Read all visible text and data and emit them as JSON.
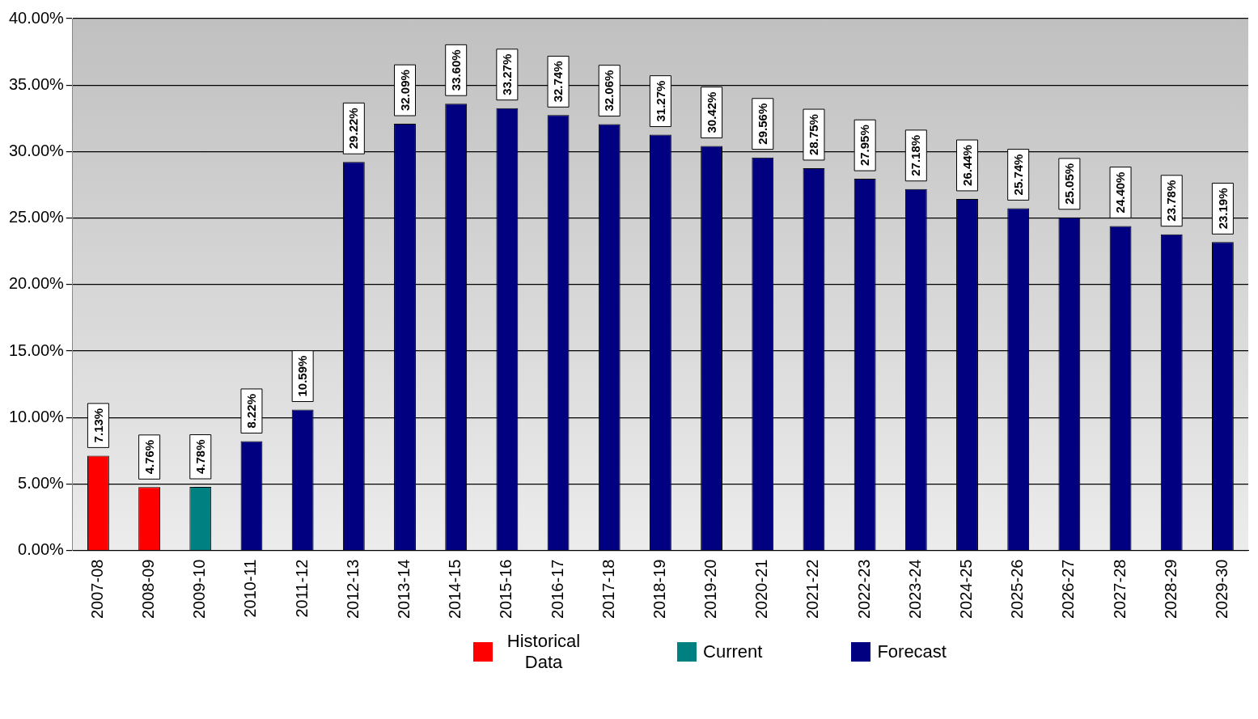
{
  "chart_data": {
    "type": "bar",
    "stacked": true,
    "categories": [
      "2007-08",
      "2008-09",
      "2009-10",
      "2010-11",
      "2011-12",
      "2012-13",
      "2013-14",
      "2014-15",
      "2015-16",
      "2016-17",
      "2017-18",
      "2018-19",
      "2019-20",
      "2020-21",
      "2021-22",
      "2022-23",
      "2023-24",
      "2024-25",
      "2025-26",
      "2026-27",
      "2027-28",
      "2028-29",
      "2029-30"
    ],
    "series": [
      {
        "name": "Historical Data",
        "color": "#ff0000",
        "values": [
          7.13,
          4.76,
          null,
          null,
          null,
          null,
          null,
          null,
          null,
          null,
          null,
          null,
          null,
          null,
          null,
          null,
          null,
          null,
          null,
          null,
          null,
          null,
          null
        ],
        "value_labels": [
          "7.13%",
          "4.76%",
          null,
          null,
          null,
          null,
          null,
          null,
          null,
          null,
          null,
          null,
          null,
          null,
          null,
          null,
          null,
          null,
          null,
          null,
          null,
          null,
          null
        ]
      },
      {
        "name": "Current",
        "color": "#008080",
        "values": [
          null,
          null,
          4.78,
          null,
          null,
          null,
          null,
          null,
          null,
          null,
          null,
          null,
          null,
          null,
          null,
          null,
          null,
          null,
          null,
          null,
          null,
          null,
          null
        ],
        "value_labels": [
          null,
          null,
          "4.78%",
          null,
          null,
          null,
          null,
          null,
          null,
          null,
          null,
          null,
          null,
          null,
          null,
          null,
          null,
          null,
          null,
          null,
          null,
          null,
          null
        ]
      },
      {
        "name": "Forecast",
        "color": "#000080",
        "values": [
          null,
          null,
          null,
          8.22,
          10.59,
          29.22,
          32.09,
          33.6,
          33.27,
          32.74,
          32.06,
          31.27,
          30.42,
          29.56,
          28.75,
          27.95,
          27.18,
          26.44,
          25.74,
          25.05,
          24.4,
          23.78,
          23.19
        ],
        "value_labels": [
          null,
          null,
          null,
          "8.22%",
          "10.59%",
          "29.22%",
          "32.09%",
          "33.60%",
          "33.27%",
          "32.74%",
          "32.06%",
          "31.27%",
          "30.42%",
          "29.56%",
          "28.75%",
          "27.95%",
          "27.18%",
          "26.44%",
          "25.74%",
          "25.05%",
          "24.40%",
          "23.78%",
          "23.19%"
        ]
      }
    ],
    "ylim": [
      0,
      40
    ],
    "yticks": [
      {
        "value": 0,
        "label": "0.00%"
      },
      {
        "value": 5,
        "label": "5.00%"
      },
      {
        "value": 10,
        "label": "10.00%"
      },
      {
        "value": 15,
        "label": "15.00%"
      },
      {
        "value": 20,
        "label": "20.00%"
      },
      {
        "value": 25,
        "label": "25.00%"
      },
      {
        "value": 30,
        "label": "30.00%"
      },
      {
        "value": 35,
        "label": "35.00%"
      },
      {
        "value": 40,
        "label": "40.00%"
      }
    ],
    "grid": "y",
    "legend": "bottom"
  }
}
